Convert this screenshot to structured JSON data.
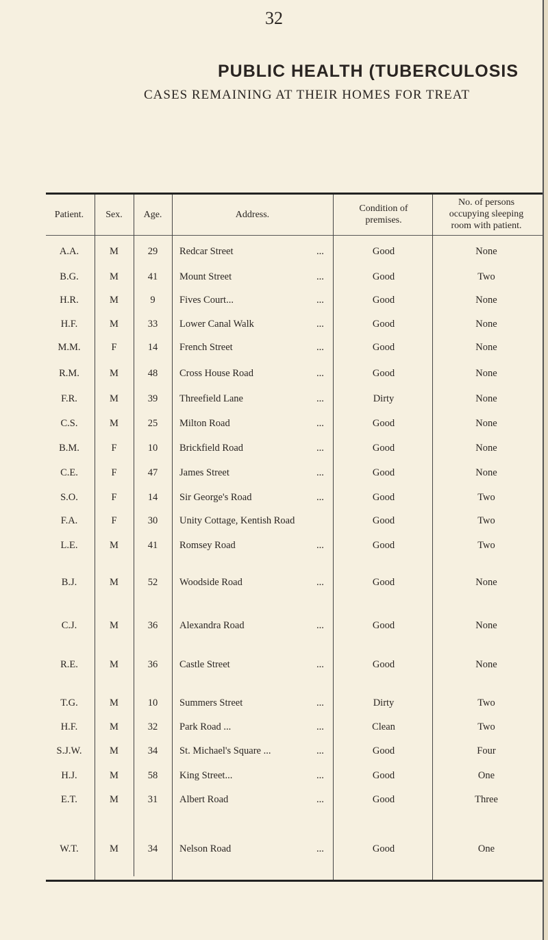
{
  "page_number": "32",
  "title": "PUBLIC HEALTH (TUBERCULOSIS",
  "subtitle": "CASES REMAINING AT THEIR HOMES FOR TREAT",
  "columns": {
    "patient": "Patient.",
    "sex": "Sex.",
    "age": "Age.",
    "address": "Address.",
    "condition": "Condition of premises.",
    "persons": "No. of persons occupying sleeping room with patient."
  },
  "leader": "...",
  "rows": [
    {
      "patient": "A.A.",
      "sex": "M",
      "age": "29",
      "address": "Redcar Street",
      "condition": "Good",
      "persons": "None"
    },
    {
      "patient": "B.G.",
      "sex": "M",
      "age": "41",
      "address": "Mount Street",
      "condition": "Good",
      "persons": "Two"
    },
    {
      "patient": "H.R.",
      "sex": "M",
      "age": "9",
      "address": "Fives Court...",
      "condition": "Good",
      "persons": "None"
    },
    {
      "patient": "H.F.",
      "sex": "M",
      "age": "33",
      "address": "Lower Canal Walk",
      "condition": "Good",
      "persons": "None"
    },
    {
      "patient": "M.M.",
      "sex": "F",
      "age": "14",
      "address": "French Street",
      "condition": "Good",
      "persons": "None"
    },
    {
      "patient": "R.M.",
      "sex": "M",
      "age": "48",
      "address": "Cross House Road",
      "condition": "Good",
      "persons": "None"
    },
    {
      "patient": "F.R.",
      "sex": "M",
      "age": "39",
      "address": "Threefield Lane",
      "condition": "Dirty",
      "persons": "None"
    },
    {
      "patient": "C.S.",
      "sex": "M",
      "age": "25",
      "address": "Milton Road",
      "condition": "Good",
      "persons": "None"
    },
    {
      "patient": "B.M.",
      "sex": "F",
      "age": "10",
      "address": "Brickfield Road",
      "condition": "Good",
      "persons": "None"
    },
    {
      "patient": "C.E.",
      "sex": "F",
      "age": "47",
      "address": "James Street",
      "condition": "Good",
      "persons": "None"
    },
    {
      "patient": "S.O.",
      "sex": "F",
      "age": "14",
      "address": "Sir George's Road",
      "condition": "Good",
      "persons": "Two"
    },
    {
      "patient": "F.A.",
      "sex": "F",
      "age": "30",
      "address": "Unity Cottage, Kentish Road",
      "condition": "Good",
      "persons": "Two"
    },
    {
      "patient": "L.E.",
      "sex": "M",
      "age": "41",
      "address": "Romsey Road",
      "condition": "Good",
      "persons": "Two"
    },
    {
      "patient": "B.J.",
      "sex": "M",
      "age": "52",
      "address": "Woodside Road",
      "condition": "Good",
      "persons": "None"
    },
    {
      "patient": "C.J.",
      "sex": "M",
      "age": "36",
      "address": "Alexandra Road",
      "condition": "Good",
      "persons": "None"
    },
    {
      "patient": "R.E.",
      "sex": "M",
      "age": "36",
      "address": "Castle Street",
      "condition": "Good",
      "persons": "None"
    },
    {
      "patient": "T.G.",
      "sex": "M",
      "age": "10",
      "address": "Summers Street",
      "condition": "Dirty",
      "persons": "Two"
    },
    {
      "patient": "H.F.",
      "sex": "M",
      "age": "32",
      "address": "Park Road ...",
      "condition": "Clean",
      "persons": "Two"
    },
    {
      "patient": "S.J.W.",
      "sex": "M",
      "age": "34",
      "address": "St. Michael's Square ...",
      "condition": "Good",
      "persons": "Four"
    },
    {
      "patient": "H.J.",
      "sex": "M",
      "age": "58",
      "address": "King Street...",
      "condition": "Good",
      "persons": "One"
    },
    {
      "patient": "E.T.",
      "sex": "M",
      "age": "31",
      "address": "Albert Road",
      "condition": "Good",
      "persons": "Three"
    },
    {
      "patient": "W.T.",
      "sex": "M",
      "age": "34",
      "address": "Nelson Road",
      "condition": "Good",
      "persons": "One"
    }
  ]
}
